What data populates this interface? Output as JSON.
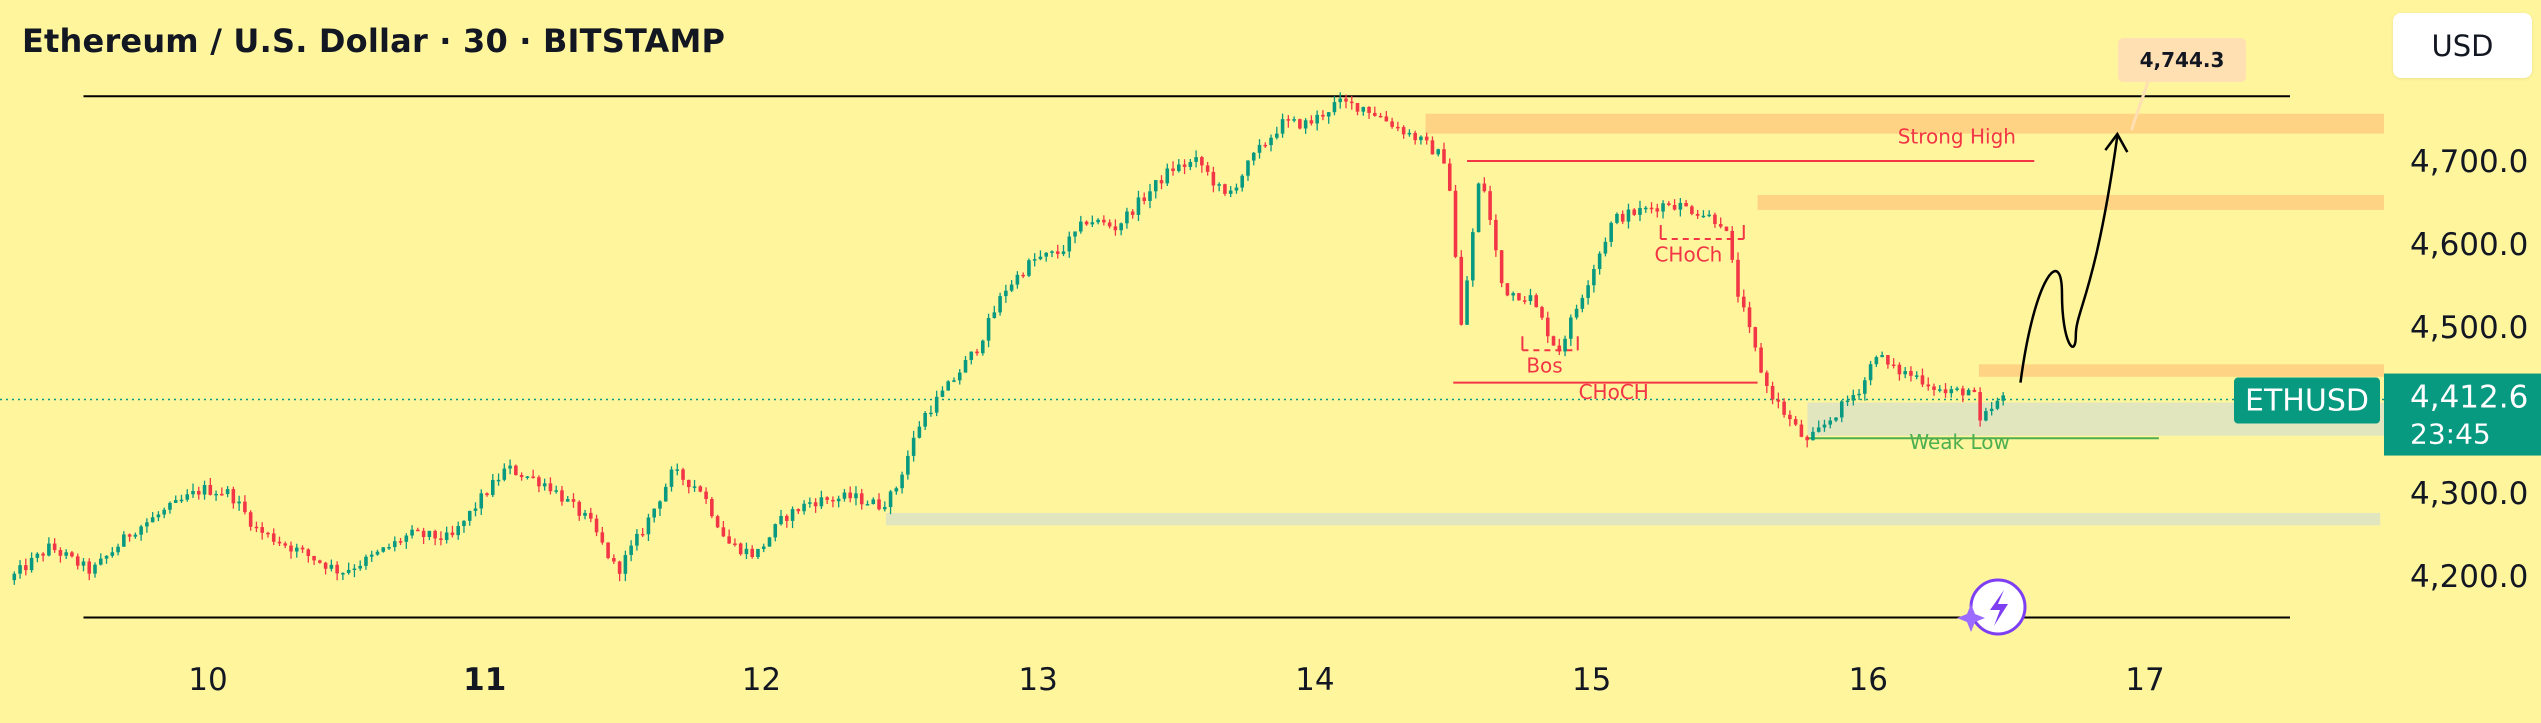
{
  "header": {
    "title": "Ethereum / U.S. Dollar · 30 · BITSTAMP",
    "currency_label": "USD"
  },
  "chart_data": {
    "type": "candlestick",
    "symbol": "ETHUSD",
    "interval": "30",
    "exchange": "BITSTAMP",
    "x_ticks": [
      {
        "label": "10",
        "day": 10,
        "bold": false
      },
      {
        "label": "11",
        "day": 11,
        "bold": true
      },
      {
        "label": "12",
        "day": 12,
        "bold": false
      },
      {
        "label": "13",
        "day": 13,
        "bold": false
      },
      {
        "label": "14",
        "day": 14,
        "bold": false
      },
      {
        "label": "15",
        "day": 15,
        "bold": false
      },
      {
        "label": "16",
        "day": 16,
        "bold": false
      },
      {
        "label": "17",
        "day": 17,
        "bold": false
      }
    ],
    "y_ticks": [
      {
        "label": "4,200.0",
        "value": 4200
      },
      {
        "label": "4,300.0",
        "value": 4300
      },
      {
        "label": "4,500.0",
        "value": 4500
      },
      {
        "label": "4,600.0",
        "value": 4600
      },
      {
        "label": "4,700.0",
        "value": 4700
      }
    ],
    "ylim": [
      4100,
      4790
    ],
    "xlim": [
      9.3,
      17.9
    ],
    "last_price": {
      "label": "4,412.6",
      "value": 4412.6,
      "countdown": "23:45",
      "symbol_tag": "ETHUSD"
    },
    "target_label": {
      "text": "4,744.3",
      "value": 4744.3
    },
    "price_path": [
      [
        9.3,
        4195
      ],
      [
        9.45,
        4235
      ],
      [
        9.6,
        4205
      ],
      [
        9.75,
        4255
      ],
      [
        9.9,
        4285
      ],
      [
        10.0,
        4305
      ],
      [
        10.1,
        4300
      ],
      [
        10.2,
        4255
      ],
      [
        10.35,
        4230
      ],
      [
        10.5,
        4205
      ],
      [
        10.6,
        4220
      ],
      [
        10.75,
        4250
      ],
      [
        10.9,
        4245
      ],
      [
        11.0,
        4290
      ],
      [
        11.1,
        4330
      ],
      [
        11.25,
        4310
      ],
      [
        11.4,
        4265
      ],
      [
        11.5,
        4205
      ],
      [
        11.6,
        4260
      ],
      [
        11.7,
        4325
      ],
      [
        11.8,
        4305
      ],
      [
        11.9,
        4240
      ],
      [
        12.0,
        4225
      ],
      [
        12.1,
        4270
      ],
      [
        12.2,
        4290
      ],
      [
        12.35,
        4295
      ],
      [
        12.45,
        4285
      ],
      [
        12.5,
        4300
      ],
      [
        12.6,
        4390
      ],
      [
        12.7,
        4430
      ],
      [
        12.8,
        4475
      ],
      [
        12.9,
        4545
      ],
      [
        13.0,
        4580
      ],
      [
        13.1,
        4590
      ],
      [
        13.2,
        4630
      ],
      [
        13.3,
        4620
      ],
      [
        13.4,
        4655
      ],
      [
        13.5,
        4690
      ],
      [
        13.6,
        4700
      ],
      [
        13.7,
        4655
      ],
      [
        13.8,
        4705
      ],
      [
        13.9,
        4745
      ],
      [
        14.0,
        4745
      ],
      [
        14.1,
        4770
      ],
      [
        14.2,
        4765
      ],
      [
        14.3,
        4745
      ],
      [
        14.4,
        4725
      ],
      [
        14.5,
        4700
      ],
      [
        14.55,
        4500
      ],
      [
        14.62,
        4690
      ],
      [
        14.7,
        4545
      ],
      [
        14.8,
        4535
      ],
      [
        14.9,
        4470
      ],
      [
        15.0,
        4550
      ],
      [
        15.1,
        4630
      ],
      [
        15.2,
        4640
      ],
      [
        15.3,
        4650
      ],
      [
        15.4,
        4640
      ],
      [
        15.5,
        4625
      ],
      [
        15.55,
        4540
      ],
      [
        15.65,
        4430
      ],
      [
        15.72,
        4395
      ],
      [
        15.8,
        4360
      ],
      [
        15.9,
        4395
      ],
      [
        16.0,
        4430
      ],
      [
        16.05,
        4470
      ],
      [
        16.1,
        4450
      ],
      [
        16.2,
        4440
      ],
      [
        16.3,
        4420
      ],
      [
        16.4,
        4425
      ],
      [
        16.42,
        4380
      ],
      [
        16.45,
        4395
      ],
      [
        16.5,
        4412.6
      ]
    ],
    "annotations": {
      "labels": [
        {
          "text": "Strong High",
          "x": 16.32,
          "y": 4721,
          "color": "#f23645"
        },
        {
          "text": "CHoCh",
          "x": 15.35,
          "y": 4579,
          "color": "#f23645"
        },
        {
          "text": "Bos",
          "x": 14.83,
          "y": 4445,
          "color": "#f23645"
        },
        {
          "text": "CHoCH",
          "x": 15.08,
          "y": 4413,
          "color": "#f23645"
        },
        {
          "text": "Weak Low",
          "x": 16.33,
          "y": 4353,
          "color": "#4caf50"
        }
      ],
      "lines": [
        {
          "x1": 9.55,
          "x2": 17.8,
          "y": 4778,
          "color": "#000000",
          "dash": false
        },
        {
          "x1": 9.55,
          "x2": 17.8,
          "y": 4150,
          "color": "#000000",
          "dash": false
        },
        {
          "x1": 14.55,
          "x2": 16.6,
          "y": 4700,
          "color": "#f23645",
          "dash": false
        },
        {
          "x1": 14.5,
          "x2": 15.6,
          "y": 4433,
          "color": "#f23645",
          "dash": false
        },
        {
          "x1": 15.78,
          "x2": 17.05,
          "y": 4366,
          "color": "#4caf50",
          "dash": false
        },
        {
          "x1": 14.75,
          "x2": 14.95,
          "y": 4472,
          "color": "#f23645",
          "dash": true
        },
        {
          "x1": 15.25,
          "x2": 15.55,
          "y": 4606,
          "color": "#f23645",
          "dash": true
        }
      ],
      "zones": [
        {
          "x1": 14.4,
          "x2": 17.9,
          "y1": 4733,
          "y2": 4757,
          "color": "#ffcc80"
        },
        {
          "x1": 15.6,
          "x2": 17.9,
          "y1": 4641,
          "y2": 4659,
          "color": "#ffcc80"
        },
        {
          "x1": 16.4,
          "x2": 17.9,
          "y1": 4440,
          "y2": 4455,
          "color": "#ffcc80"
        },
        {
          "x1": 15.78,
          "x2": 17.9,
          "y1": 4369,
          "y2": 4409,
          "color": "#dde3c4"
        },
        {
          "x1": 12.45,
          "x2": 17.85,
          "y1": 4261,
          "y2": 4276,
          "color": "#dde3c4"
        }
      ],
      "arrow_path": [
        [
          16.55,
          4433
        ],
        [
          16.6,
          4560
        ],
        [
          16.7,
          4540
        ],
        [
          16.75,
          4490
        ],
        [
          16.82,
          4560
        ],
        [
          16.9,
          4730
        ]
      ]
    },
    "colors": {
      "background": "#fff59d",
      "up": "#089981",
      "down": "#f23645",
      "price_tag": "#089981",
      "target_bg": "#ffe0b2",
      "axis_text": "#131722"
    }
  }
}
